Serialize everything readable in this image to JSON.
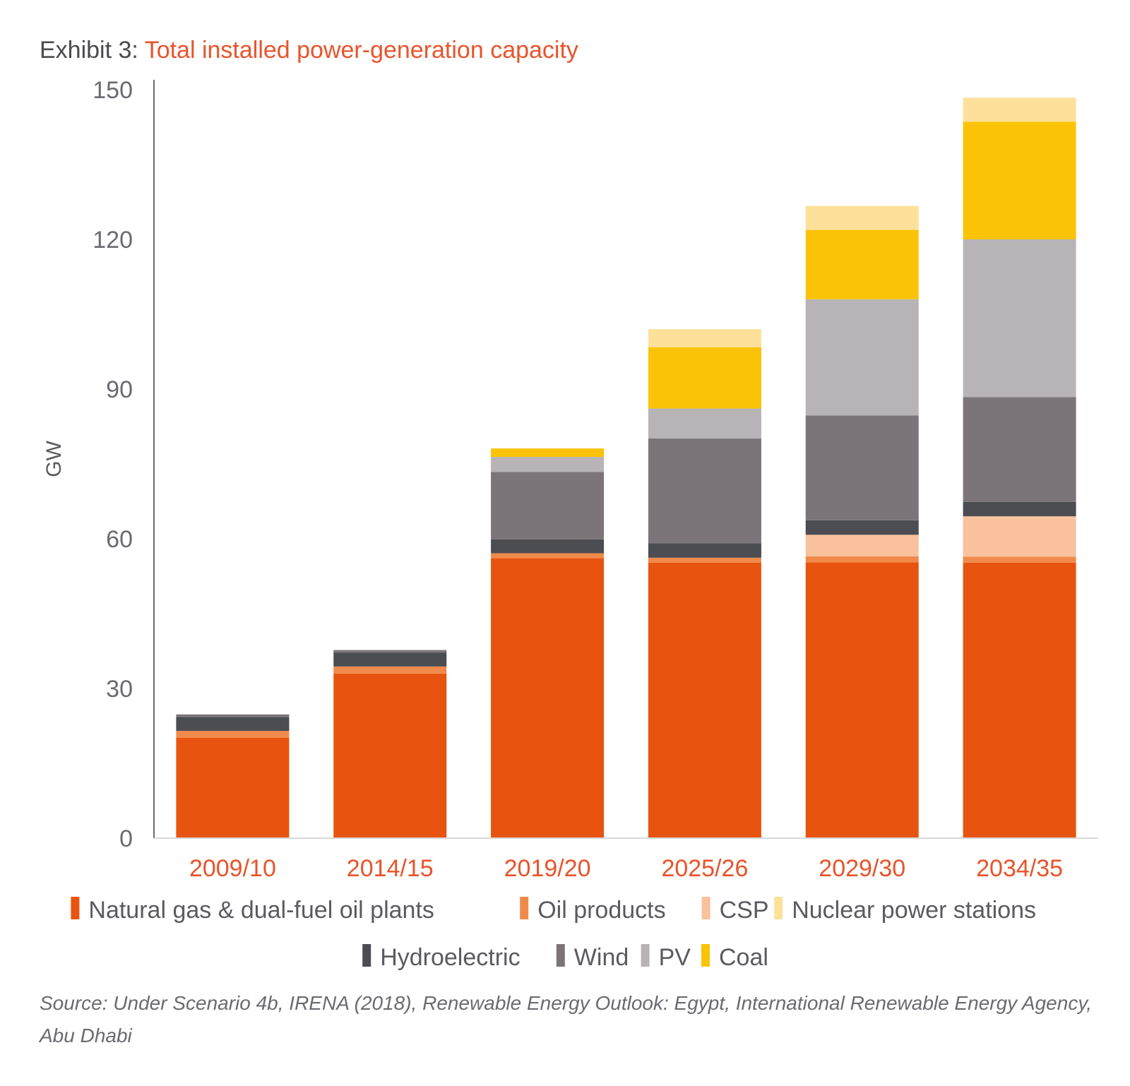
{
  "title": {
    "prefix": "Exhibit 3: ",
    "main": "Total installed power-generation capacity"
  },
  "source": "Source: Under Scenario 4b, IRENA (2018), Renewable Energy Outlook: Egypt, International Renewable Energy Agency, Abu Dhabi",
  "chart_data": {
    "type": "bar",
    "stacked": true,
    "title": "Total installed power-generation capacity",
    "xlabel": "",
    "ylabel": "GW",
    "ylim": [
      0,
      150
    ],
    "yticks": [
      0,
      30,
      60,
      90,
      120,
      150
    ],
    "categories": [
      "2009/10",
      "2014/15",
      "2019/20",
      "2025/26",
      "2029/30",
      "2034/35"
    ],
    "grid": false,
    "legend_position": "bottom",
    "series": [
      {
        "name": "Natural gas & dual-fuel oil plants",
        "color": "#e8540f",
        "values": [
          20.1,
          33.0,
          56.1,
          55.2,
          55.3,
          55.2
        ]
      },
      {
        "name": "Oil products",
        "color": "#f08a4b",
        "values": [
          1.4,
          1.4,
          1.0,
          1.0,
          1.2,
          1.2
        ]
      },
      {
        "name": "CSP",
        "color": "#f9c19c",
        "values": [
          0,
          0,
          0,
          0,
          4.3,
          8.1
        ]
      },
      {
        "name": "Hydroelectric",
        "color": "#4b4d52",
        "values": [
          2.8,
          2.8,
          2.8,
          2.9,
          2.9,
          2.9
        ]
      },
      {
        "name": "Wind",
        "color": "#7b7579",
        "values": [
          0.5,
          0.5,
          13.5,
          21.0,
          21.0,
          21.0
        ]
      },
      {
        "name": "PV",
        "color": "#b8b3b6",
        "values": [
          0,
          0,
          3.0,
          6.0,
          23.3,
          31.6
        ]
      },
      {
        "name": "Coal",
        "color": "#fbc307",
        "values": [
          0,
          0,
          1.7,
          12.3,
          13.9,
          23.6
        ]
      },
      {
        "name": "Nuclear power stations",
        "color": "#fde19b",
        "values": [
          0,
          0,
          0,
          3.6,
          4.8,
          4.8
        ]
      }
    ],
    "legend_order": [
      "Natural gas & dual-fuel oil plants",
      "Oil products",
      "CSP",
      "Nuclear power stations",
      "Hydroelectric",
      "Wind",
      "PV",
      "Coal"
    ]
  }
}
